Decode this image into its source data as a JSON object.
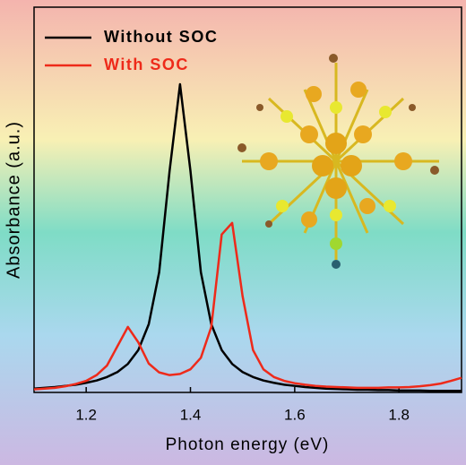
{
  "chart_data": {
    "type": "line",
    "xlabel": "Photon energy (eV)",
    "ylabel": "Absorbance (a.u.)",
    "x": [
      1.1,
      1.12,
      1.14,
      1.16,
      1.18,
      1.2,
      1.22,
      1.24,
      1.26,
      1.28,
      1.3,
      1.32,
      1.34,
      1.36,
      1.38,
      1.4,
      1.42,
      1.44,
      1.46,
      1.48,
      1.5,
      1.52,
      1.54,
      1.56,
      1.58,
      1.6,
      1.62,
      1.64,
      1.66,
      1.68,
      1.7,
      1.72,
      1.74,
      1.76,
      1.78,
      1.8,
      1.82,
      1.84,
      1.86,
      1.88,
      1.9,
      1.92
    ],
    "series": [
      {
        "name": "Without SOC",
        "color": "#000000",
        "values": [
          0.01,
          0.012,
          0.014,
          0.017,
          0.02,
          0.025,
          0.031,
          0.04,
          0.053,
          0.074,
          0.11,
          0.177,
          0.312,
          0.575,
          0.8,
          0.575,
          0.312,
          0.177,
          0.11,
          0.074,
          0.053,
          0.04,
          0.031,
          0.025,
          0.02,
          0.017,
          0.014,
          0.012,
          0.01,
          0.009,
          0.008,
          0.007,
          0.007,
          0.006,
          0.006,
          0.005,
          0.005,
          0.005,
          0.004,
          0.004,
          0.004,
          0.004
        ]
      },
      {
        "name": "With SOC",
        "color": "#ee2a1a",
        "values": [
          0.008,
          0.01,
          0.012,
          0.016,
          0.022,
          0.03,
          0.045,
          0.07,
          0.12,
          0.17,
          0.13,
          0.075,
          0.052,
          0.045,
          0.048,
          0.06,
          0.09,
          0.17,
          0.41,
          0.44,
          0.25,
          0.11,
          0.06,
          0.04,
          0.03,
          0.024,
          0.02,
          0.017,
          0.015,
          0.014,
          0.013,
          0.012,
          0.012,
          0.012,
          0.013,
          0.013,
          0.014,
          0.016,
          0.019,
          0.023,
          0.03,
          0.038
        ]
      }
    ],
    "xlim": [
      1.1,
      1.92
    ],
    "ylim": [
      0,
      1
    ],
    "xticks": [
      1.2,
      1.4,
      1.6,
      1.8
    ]
  }
}
